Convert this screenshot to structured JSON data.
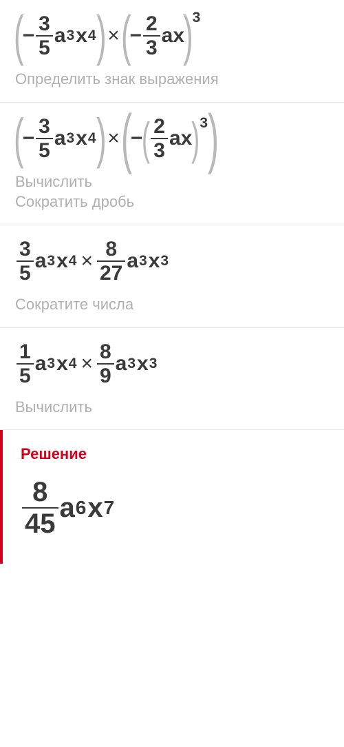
{
  "colors": {
    "text": "#3a3a3a",
    "muted": "#b0b0b0",
    "paren": "#b8b8b8",
    "accent": "#d0021b",
    "divider": "#e8e8e8",
    "background": "#ffffff"
  },
  "typography": {
    "expr_fontsize": 30,
    "caption_fontsize": 22,
    "solution_fontsize": 40,
    "font_family": "Arial, sans-serif"
  },
  "steps": [
    {
      "expr_math": "(-3/5 a^3 x^4) × (-2/3 a x)^3",
      "left": {
        "sign": "−",
        "frac": {
          "num": "3",
          "den": "5"
        },
        "terms": [
          {
            "base": "a",
            "exp": "3"
          },
          {
            "base": "x",
            "exp": "4"
          }
        ]
      },
      "op": "×",
      "right": {
        "sign": "−",
        "frac": {
          "num": "2",
          "den": "3"
        },
        "terms": [
          {
            "base": "a",
            "exp": ""
          },
          {
            "base": "x",
            "exp": ""
          }
        ],
        "outer_exp": "3"
      },
      "caption": "Определить знак выражения"
    },
    {
      "expr_math": "(-3/5 a^3 x^4) × (-(2/3 a x)^3)",
      "left": {
        "sign": "−",
        "frac": {
          "num": "3",
          "den": "5"
        },
        "terms": [
          {
            "base": "a",
            "exp": "3"
          },
          {
            "base": "x",
            "exp": "4"
          }
        ]
      },
      "op": "×",
      "right_outer_sign": "−",
      "right_inner": {
        "frac": {
          "num": "2",
          "den": "3"
        },
        "terms": [
          {
            "base": "a",
            "exp": ""
          },
          {
            "base": "x",
            "exp": ""
          }
        ],
        "outer_exp": "3"
      },
      "caption": "Вычислить\nСократить дробь"
    },
    {
      "expr_math": "3/5 a^3 x^4 × 8/27 a^3 x^3",
      "left": {
        "frac": {
          "num": "3",
          "den": "5"
        },
        "terms": [
          {
            "base": "a",
            "exp": "3"
          },
          {
            "base": "x",
            "exp": "4"
          }
        ]
      },
      "op": "×",
      "right": {
        "frac": {
          "num": "8",
          "den": "27"
        },
        "terms": [
          {
            "base": "a",
            "exp": "3"
          },
          {
            "base": "x",
            "exp": "3"
          }
        ]
      },
      "caption": "Сократите числа"
    },
    {
      "expr_math": "1/5 a^3 x^4 × 8/9 a^3 x^3",
      "left": {
        "frac": {
          "num": "1",
          "den": "5"
        },
        "terms": [
          {
            "base": "a",
            "exp": "3"
          },
          {
            "base": "x",
            "exp": "4"
          }
        ]
      },
      "op": "×",
      "right": {
        "frac": {
          "num": "8",
          "den": "9"
        },
        "terms": [
          {
            "base": "a",
            "exp": "3"
          },
          {
            "base": "x",
            "exp": "3"
          }
        ]
      },
      "caption": "Вычислить"
    }
  ],
  "solution": {
    "title": "Решение",
    "expr_math": "8/45 a^6 x^7",
    "frac": {
      "num": "8",
      "den": "45"
    },
    "terms": [
      {
        "base": "a",
        "exp": "6"
      },
      {
        "base": "x",
        "exp": "7"
      }
    ]
  }
}
